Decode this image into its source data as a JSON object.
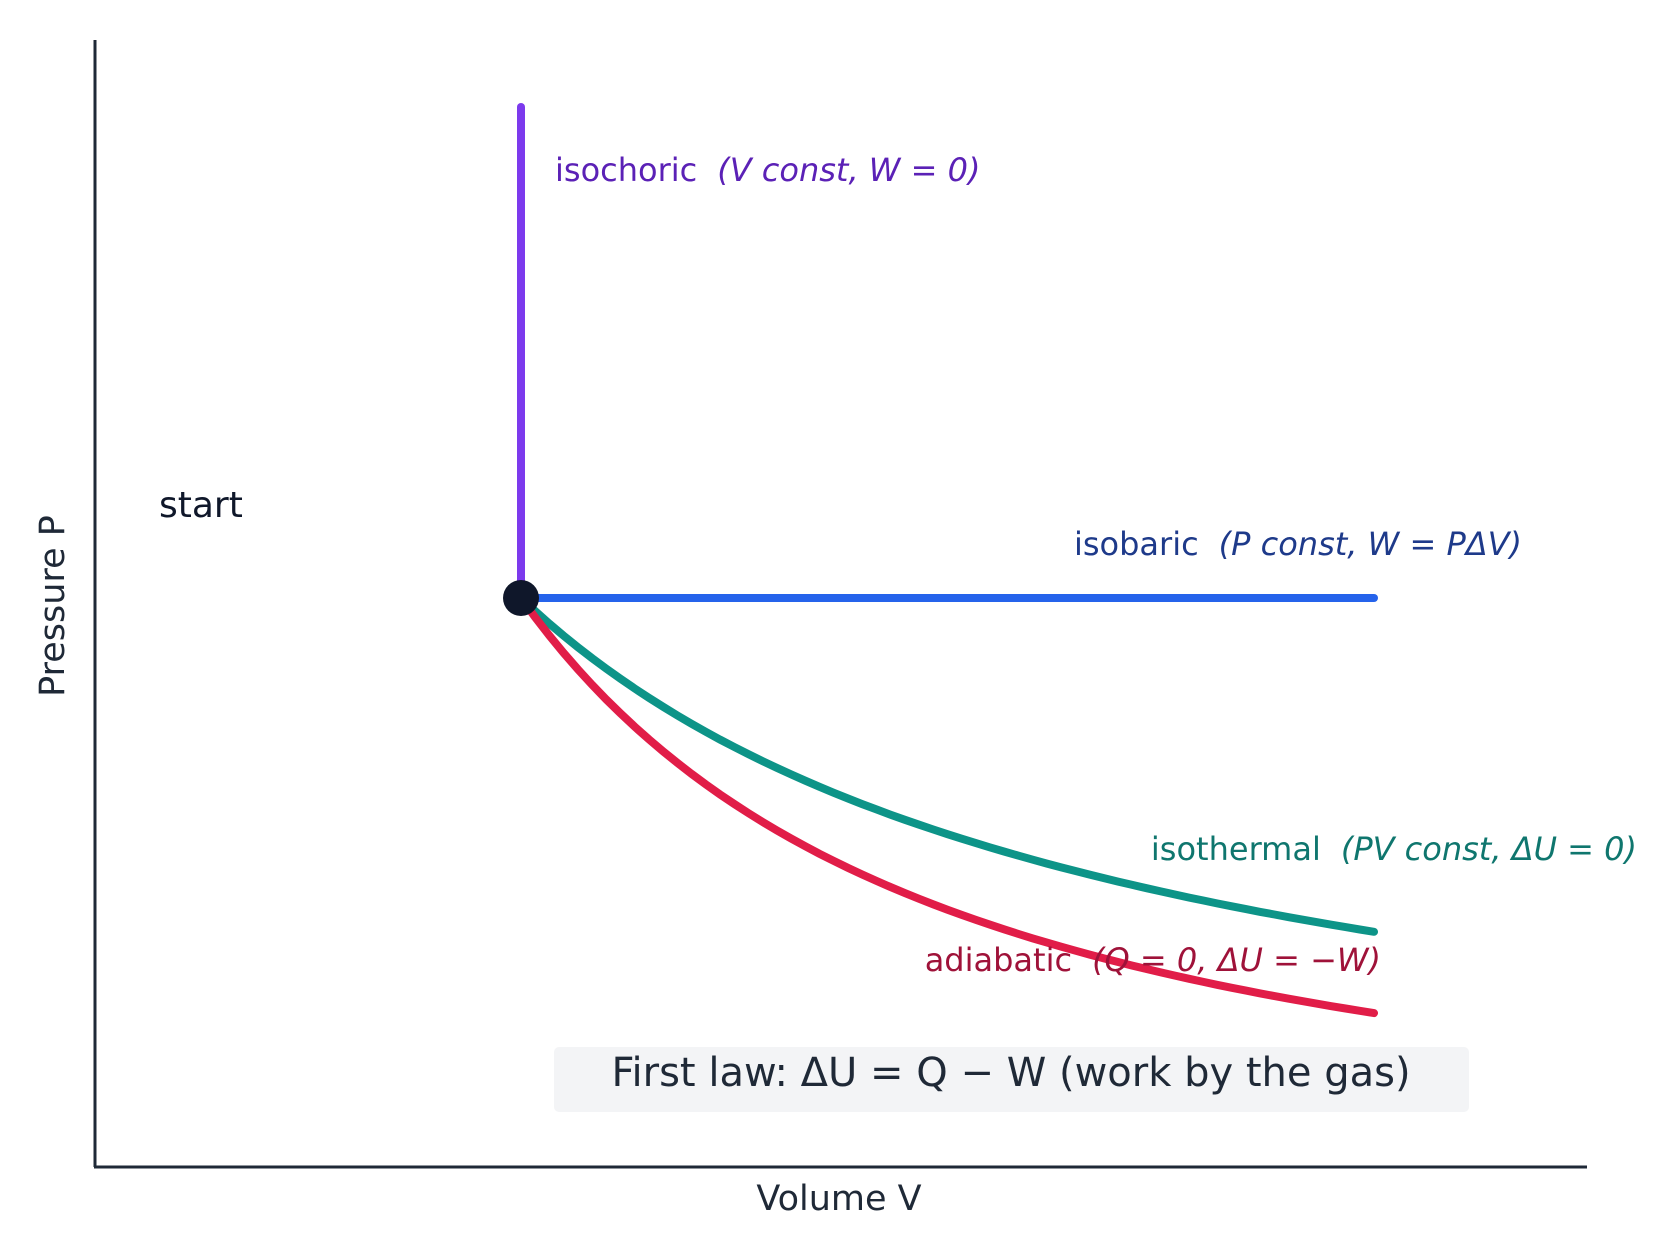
{
  "diagram": {
    "axes": {
      "x_label": "Volume  V",
      "y_label": "Pressure  P"
    },
    "start_label": "start",
    "processes": [
      {
        "name": "isochoric",
        "formula": "(V const, W = 0)"
      },
      {
        "name": "isobaric",
        "formula": "(P const, W = PΔV)"
      },
      {
        "name": "isothermal",
        "formula": "(PV const, ΔU = 0)"
      },
      {
        "name": "adiabatic",
        "formula": "(Q = 0, ΔU = −W)"
      }
    ],
    "note": "First law:  ΔU = Q − W  (work by the gas)"
  }
}
